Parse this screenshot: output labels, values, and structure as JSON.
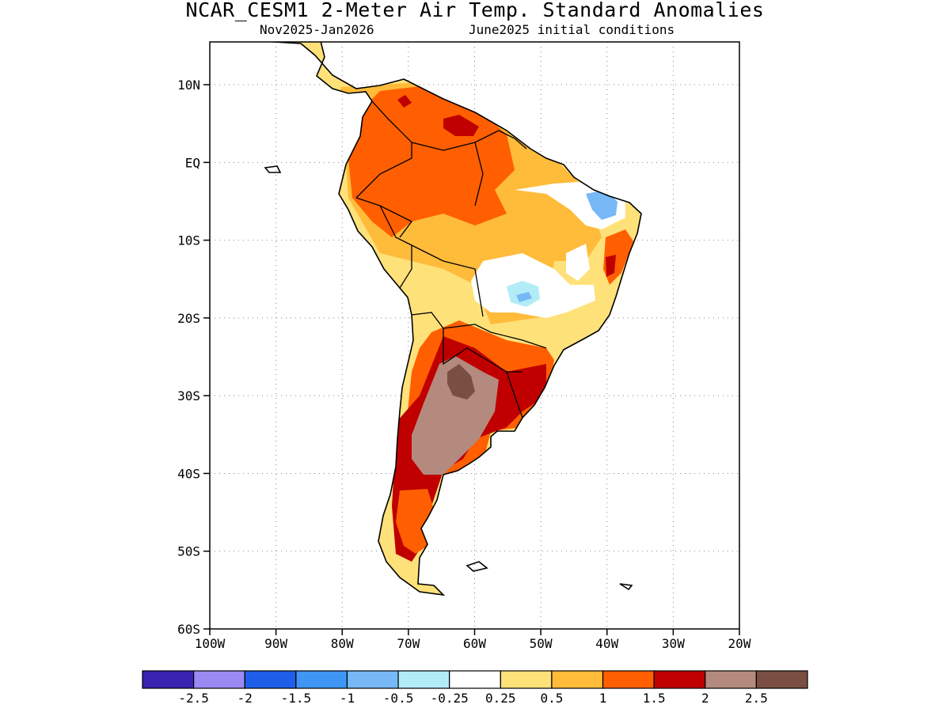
{
  "header": {
    "title": "NCAR_CESM1 2-Meter Air Temp. Standard Anomalies",
    "period": "Nov2025-Jan2026",
    "init": "June2025 initial conditions"
  },
  "axes": {
    "lat_labels": [
      "10N",
      "EQ",
      "10S",
      "20S",
      "30S",
      "40S",
      "50S",
      "60S"
    ],
    "lat_values": [
      10,
      0,
      -10,
      -20,
      -30,
      -40,
      -50,
      -60
    ],
    "lon_labels": [
      "100W",
      "90W",
      "80W",
      "70W",
      "60W",
      "50W",
      "40W",
      "30W",
      "20W"
    ],
    "lon_values": [
      -100,
      -90,
      -80,
      -70,
      -60,
      -50,
      -40,
      -30,
      -20
    ],
    "lat_range": [
      -60,
      15.5
    ],
    "lon_range": [
      -100,
      -20
    ],
    "grid": "dotted"
  },
  "colorbar": {
    "colors": [
      "#3a22b0",
      "#9b8af2",
      "#1f5ee8",
      "#3f96f5",
      "#77b8f7",
      "#b1ecf7",
      "#ffffff",
      "#ffe17a",
      "#ffbb3a",
      "#ff5f00",
      "#c00000",
      "#b58a7e",
      "#7a4e42"
    ],
    "labels": [
      "-2.5",
      "-2",
      "-1.5",
      "-1",
      "-0.5",
      "-0.25",
      "0.25",
      "0.5",
      "1",
      "1.5",
      "2",
      "2.5"
    ]
  },
  "regions": {
    "base": "#ffe17a",
    "land": "#000000"
  }
}
